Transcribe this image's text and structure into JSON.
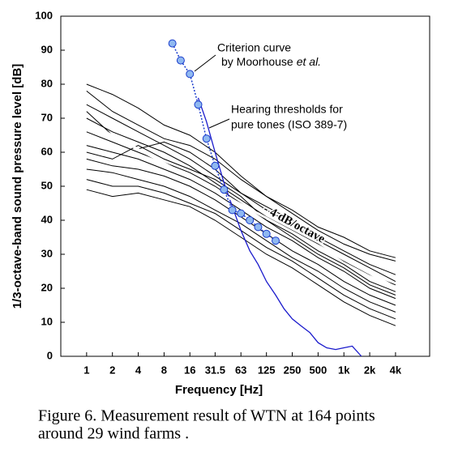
{
  "chart_data": {
    "type": "line",
    "xscale": "log",
    "x_label": "Frequency [Hz]",
    "y_label": "1/3-octave-band sound pressure level [dB]",
    "xlim": [
      0.5,
      10000
    ],
    "ylim": [
      0,
      100
    ],
    "xticks": [
      1,
      2,
      4,
      8,
      16,
      31.5,
      63,
      125,
      250,
      500,
      {
        "value": 1000,
        "label": "1k"
      },
      {
        "value": 2000,
        "label": "2k"
      },
      {
        "value": 4000,
        "label": "4k"
      }
    ],
    "yticks": [
      0,
      10,
      20,
      30,
      40,
      50,
      60,
      70,
      80,
      90,
      100
    ],
    "grid": false,
    "x": [
      1,
      2,
      4,
      8,
      16,
      31.5,
      63,
      125,
      250,
      500,
      1000,
      2000,
      4000
    ],
    "series": [
      {
        "color": "#000000",
        "values": [
          80,
          77,
          73,
          68,
          65,
          60,
          53,
          47,
          42,
          37,
          33,
          30,
          28
        ]
      },
      {
        "color": "#000000",
        "values": [
          78,
          72,
          68,
          64,
          62,
          58,
          52,
          47,
          43,
          38,
          35,
          31,
          29
        ]
      },
      {
        "color": "#000000",
        "values": [
          74,
          70,
          66,
          62,
          58,
          53,
          48,
          44,
          40,
          35,
          31,
          27,
          24
        ]
      },
      {
        "color": "#000000",
        "values": [
          70,
          66,
          63,
          60,
          56,
          51,
          46,
          41,
          37,
          33,
          28,
          24,
          21
        ]
      },
      {
        "color": "#000000",
        "values": [
          66,
          63,
          60,
          57,
          54,
          50,
          45,
          40,
          36,
          31,
          27,
          22,
          19
        ]
      },
      {
        "color": "#000000",
        "values": [
          62,
          60,
          58,
          55,
          52,
          48,
          43,
          38,
          34,
          29,
          25,
          20,
          17
        ]
      },
      {
        "color": "#000000",
        "values": [
          58,
          56,
          55,
          53,
          50,
          46,
          41,
          36,
          31,
          27,
          22,
          18,
          15
        ]
      },
      {
        "color": "#000000",
        "values": [
          55,
          54,
          52,
          50,
          47,
          43,
          39,
          34,
          29,
          25,
          20,
          16,
          13
        ]
      },
      {
        "color": "#000000",
        "values": [
          52,
          50,
          50,
          48,
          45,
          42,
          37,
          32,
          28,
          23,
          18,
          14,
          11
        ]
      },
      {
        "color": "#000000",
        "values": [
          49,
          47,
          48,
          46,
          44,
          40,
          35,
          30,
          26,
          21,
          16,
          12,
          9
        ]
      },
      {
        "color": "#000000",
        "values": [
          72,
          65,
          61,
          63,
          60,
          55,
          48,
          43,
          39,
          34,
          30,
          26,
          22
        ]
      },
      {
        "color": "#000000",
        "values": [
          60,
          58,
          62,
          58,
          55,
          52,
          47,
          40,
          35,
          30,
          26,
          21,
          18
        ]
      }
    ],
    "trend": {
      "color": "#ffffff",
      "x": [
        1,
        5000
      ],
      "values": [
        69,
        19
      ],
      "label": "- 4 dB/octave"
    },
    "hearing_threshold": {
      "color": "#1a1acc",
      "x": [
        20,
        25,
        31.5,
        40,
        50,
        63,
        80,
        100,
        125,
        160,
        200,
        250,
        315,
        400,
        500,
        630,
        800,
        1000,
        1250,
        1600
      ],
      "values": [
        76,
        69,
        60,
        51,
        44,
        37,
        31,
        27,
        22,
        18,
        14,
        11,
        9,
        7,
        4,
        2.5,
        2,
        2.5,
        3,
        0
      ]
    },
    "criterion": {
      "color": "#8fb8f0",
      "x": [
        10,
        12.5,
        16,
        20,
        25,
        31.5,
        40,
        50,
        63,
        80,
        100,
        125,
        160
      ],
      "values": [
        92,
        87,
        83,
        74,
        64,
        56,
        49,
        43,
        42,
        40,
        38,
        36,
        34
      ]
    },
    "annotations": {
      "criterion_1": "Criterion curve",
      "criterion_2": "by Moorhouse",
      "criterion_3": "et al.",
      "hearing_1": "Hearing thresholds for",
      "hearing_2": "pure tones (ISO 389-7)"
    }
  },
  "caption": [
    "Figure 6. Measurement result of WTN at 164 points",
    "around 29 wind farms ."
  ]
}
